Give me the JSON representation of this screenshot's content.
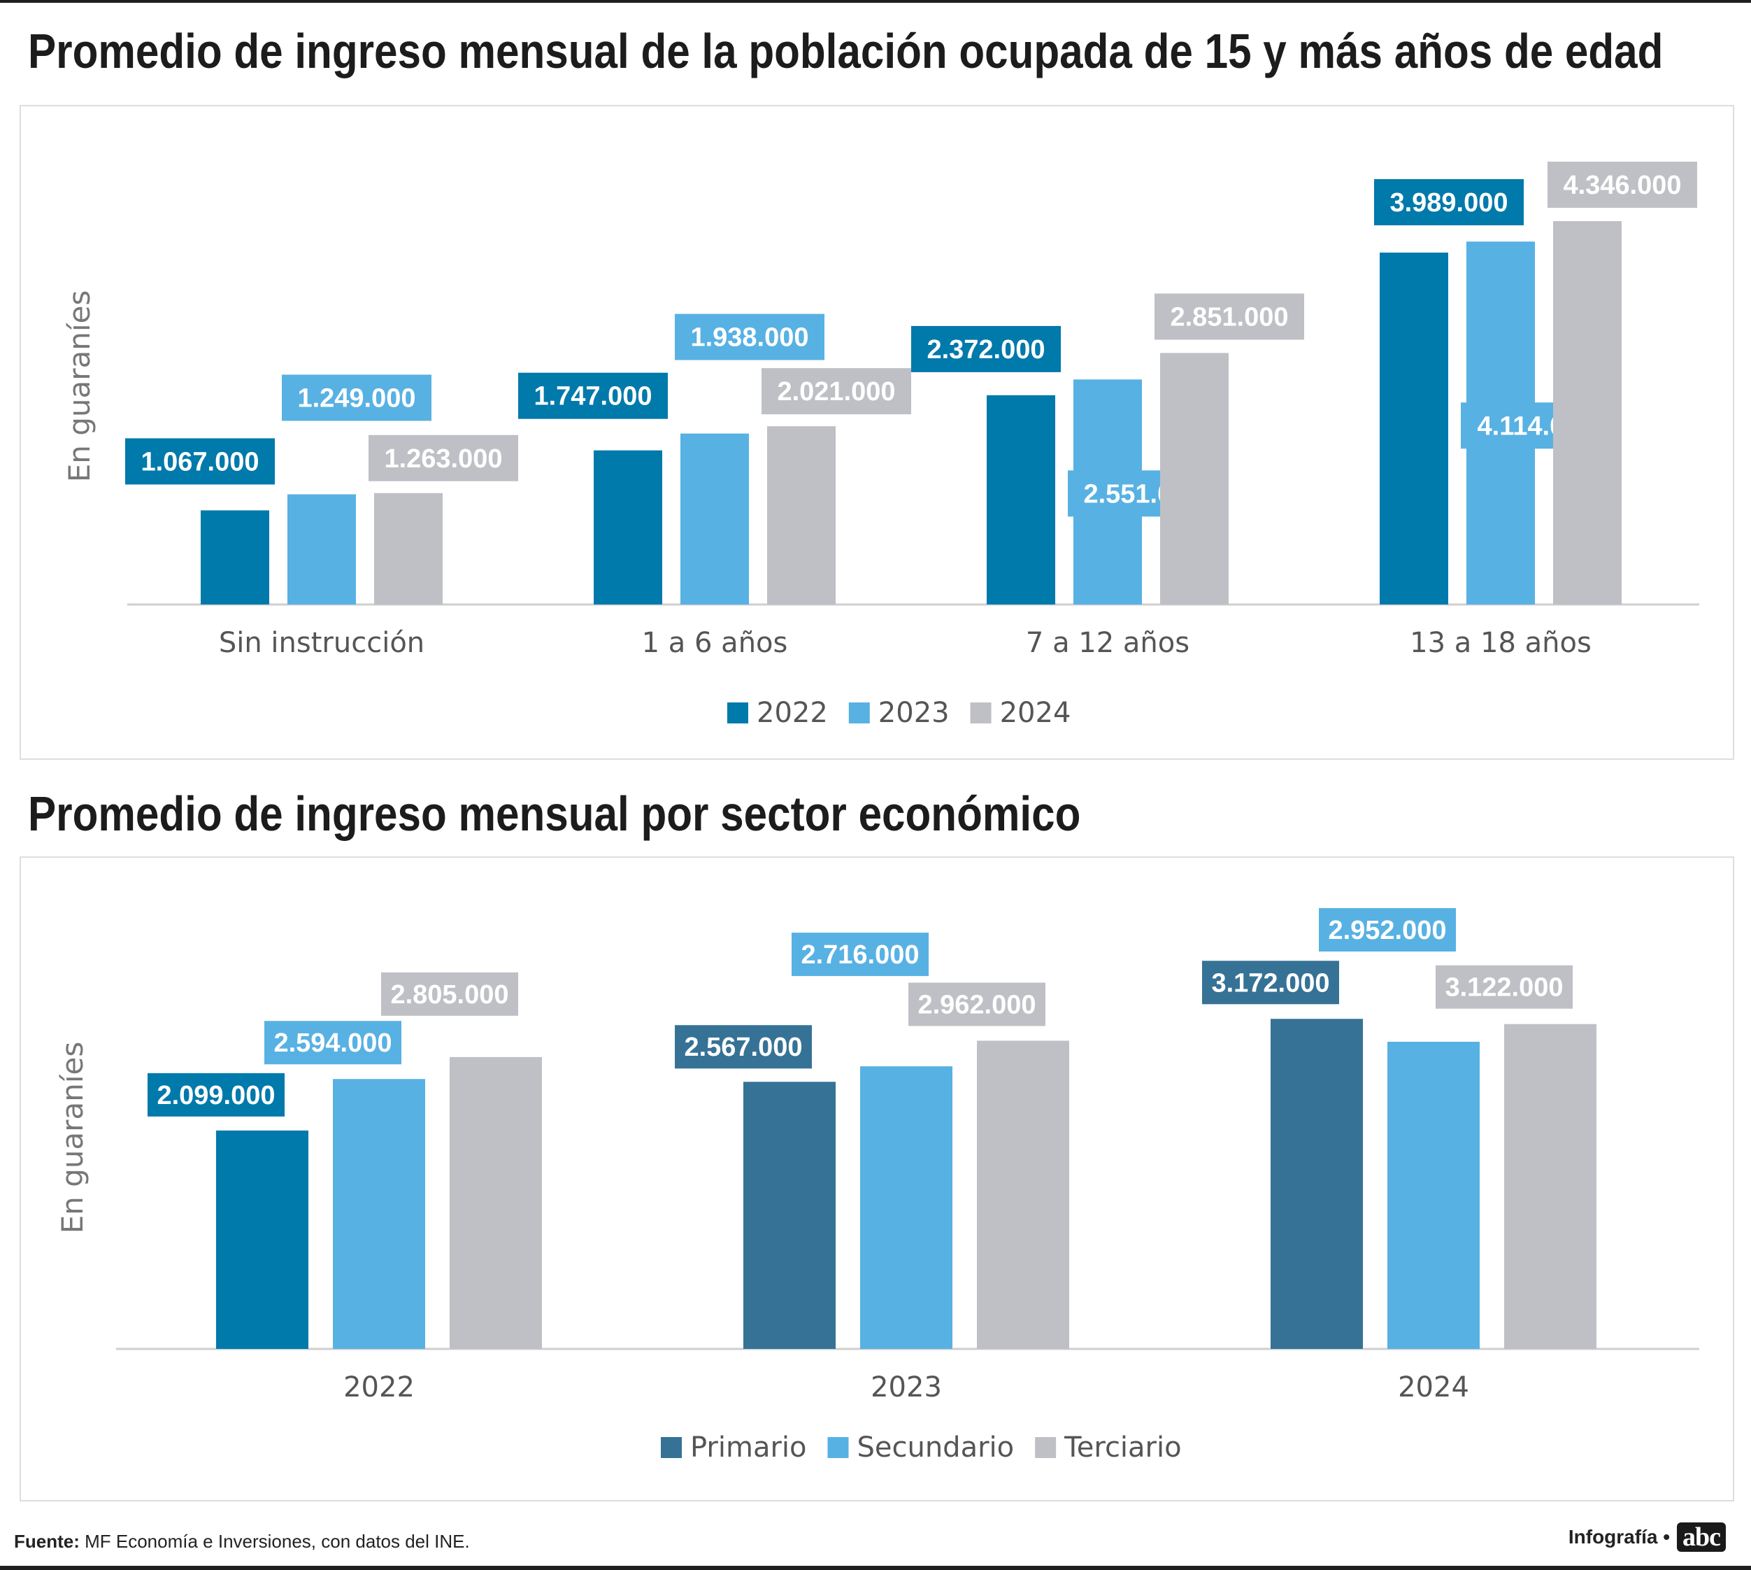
{
  "chart_data": [
    {
      "type": "bar",
      "title": "Promedio de ingreso mensual de la población ocupada de 15 y más años de edad",
      "ylabel": "En guaraníes",
      "xlabel": "",
      "categories": [
        "Sin instrucción",
        "1 a 6 años",
        "7 a 12 años",
        "13 a 18 años"
      ],
      "series": [
        {
          "name": "2022",
          "color": "#0079ab",
          "values": [
            1067000,
            1747000,
            2372000,
            3989000
          ],
          "labels": [
            "1.067.000",
            "1.747.000",
            "2.372.000",
            "3.989.000"
          ]
        },
        {
          "name": "2023",
          "color": "#58b1e3",
          "values": [
            1249000,
            1938000,
            2551000,
            4114000
          ],
          "labels": [
            "1.249.000",
            "1.938.000",
            "2.551.000",
            "4.114.000"
          ]
        },
        {
          "name": "2024",
          "color": "#bfc0c5",
          "values": [
            1263000,
            2021000,
            2851000,
            4346000
          ],
          "labels": [
            "1.263.000",
            "2.021.000",
            "2.851.000",
            "4.346.000"
          ]
        }
      ],
      "legend": "bottom-center",
      "grid": false
    },
    {
      "type": "bar",
      "title": "Promedio de ingreso mensual por sector económico",
      "ylabel": "En guaraníes",
      "xlabel": "",
      "categories": [
        "2022",
        "2023",
        "2024"
      ],
      "series": [
        {
          "name": "Primario",
          "color": "#367295",
          "values": [
            2099000,
            2567000,
            3172000
          ],
          "labels": [
            "2.099.000",
            "2.567.000",
            "3.172.000"
          ]
        },
        {
          "name": "Secundario",
          "color": "#58b1e3",
          "values": [
            2594000,
            2716000,
            2952000
          ],
          "labels": [
            "2.594.000",
            "2.716.000",
            "2.952.000"
          ]
        },
        {
          "name": "Terciario",
          "color": "#bfc0c5",
          "values": [
            2805000,
            2962000,
            3122000
          ],
          "labels": [
            "2.805.000",
            "2.962.000",
            "3.122.000"
          ]
        }
      ],
      "first_bar_color": "#0079ab",
      "legend": "bottom-center",
      "grid": false
    }
  ],
  "footer": {
    "source_label": "Fuente:",
    "source_text": " MF Economía e Inversiones, con datos del INE.",
    "credit_text": "Infografía •",
    "logo_text": "abc"
  }
}
